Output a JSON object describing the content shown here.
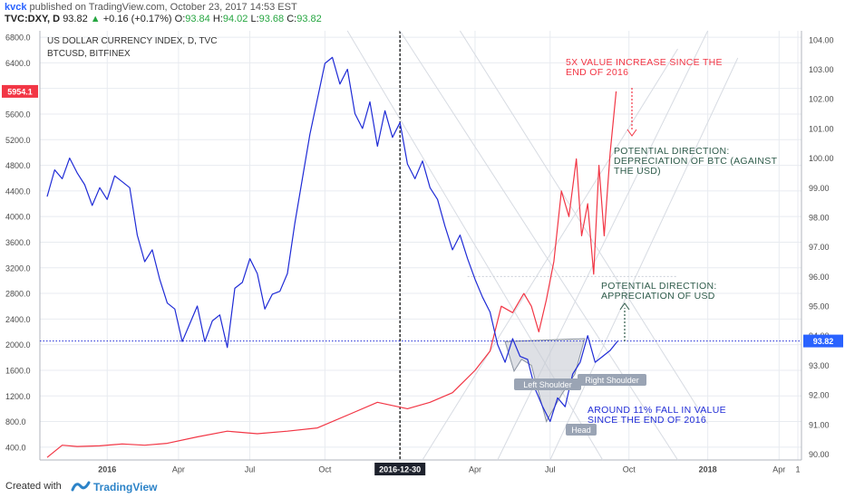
{
  "header": {
    "user": "kvck",
    "published_text": "published on TradingView.com, October 23, 2017 14:53 EST",
    "symbol": "TVC:DXY, D",
    "last": "93.82",
    "change": "+0.16 (+0.17%)",
    "open_label": "O:",
    "open": "93.84",
    "high_label": "H:",
    "high": "94.02",
    "low_label": "L:",
    "low": "93.68",
    "close_label": "C:",
    "close": "93.82"
  },
  "footer": {
    "created_with": "Created with",
    "brand": "TradingView"
  },
  "chart_data": {
    "type": "line",
    "title": "US DOLLAR CURRENCY INDEX, D, TVC",
    "subtitle": "BTCUSD, BITFINEX",
    "x_ticks": [
      "2016",
      "Apr",
      "Jul",
      "Oct",
      "2016-12-30",
      "Apr",
      "Jul",
      "Oct",
      "2018",
      "Apr",
      "1"
    ],
    "left_axis": {
      "ticks": [
        "6800.0",
        "6400.0",
        "6000.0",
        "5600.0",
        "5200.0",
        "4800.0",
        "4400.0",
        "4000.0",
        "3600.0",
        "3200.0",
        "2800.0",
        "2400.0",
        "2000.0",
        "1600.0",
        "1200.0",
        "800.0",
        "400.0"
      ],
      "range": [
        200,
        6900
      ]
    },
    "right_axis": {
      "ticks": [
        "104.00",
        "103.00",
        "102.00",
        "101.00",
        "100.00",
        "99.00",
        "98.00",
        "97.00",
        "96.00",
        "95.00",
        "94.00",
        "93.00",
        "92.00",
        "91.00",
        "90.00"
      ],
      "range": [
        89.8,
        104.3
      ]
    },
    "left_marker": {
      "value": "5954.1",
      "color": "#f23645"
    },
    "right_marker": {
      "value": "93.82",
      "color": "#2962ff"
    },
    "cursor_date": "2016-12-30",
    "series": [
      {
        "name": "BTCUSD, BITFINEX",
        "axis": "left",
        "color": "#f23645",
        "x": [
          0,
          2,
          4,
          7,
          10,
          13,
          16,
          20,
          24,
          28,
          32,
          36,
          40,
          44,
          48,
          51,
          54,
          57,
          59,
          60.5,
          62,
          63.5,
          64.5,
          65.5,
          66.5,
          67.5,
          68.5,
          69.5,
          70.5,
          71.2,
          72,
          72.8,
          73.5,
          74.2,
          75,
          75.8
        ],
        "values": [
          240,
          430,
          410,
          420,
          450,
          430,
          460,
          560,
          650,
          610,
          650,
          700,
          900,
          1100,
          1000,
          1100,
          1250,
          1600,
          1900,
          2600,
          2500,
          2800,
          2600,
          2200,
          2700,
          3300,
          4400,
          4000,
          4900,
          3700,
          4200,
          3100,
          4800,
          3700,
          5000,
          5954
        ]
      },
      {
        "name": "US DOLLAR CURRENCY INDEX, D, TVC",
        "axis": "right",
        "color": "#1f2bd6",
        "x": [
          0,
          1,
          2,
          3,
          4,
          5,
          6,
          7,
          8,
          9,
          10,
          11,
          12,
          13,
          14,
          15,
          16,
          17,
          18,
          19,
          20,
          21,
          22,
          23,
          24,
          25,
          26,
          27,
          28,
          29,
          30,
          31,
          32,
          33,
          34,
          35,
          36,
          37,
          38,
          39,
          40,
          41,
          42,
          43,
          44,
          45,
          46,
          47,
          48,
          49,
          50,
          51,
          52,
          53,
          54,
          55,
          56,
          57,
          58,
          59,
          60,
          61,
          62,
          63,
          64,
          65,
          66,
          67,
          68,
          69,
          70,
          71,
          72,
          73,
          74,
          75,
          76
        ],
        "values": [
          98.7,
          99.6,
          99.3,
          100.0,
          99.5,
          99.1,
          98.4,
          99.0,
          98.6,
          99.4,
          99.2,
          99.0,
          97.4,
          96.5,
          96.9,
          95.9,
          95.1,
          94.9,
          93.8,
          94.4,
          95.0,
          93.8,
          94.5,
          94.7,
          93.6,
          95.6,
          95.8,
          96.6,
          96.1,
          94.9,
          95.4,
          95.5,
          96.1,
          97.8,
          99.3,
          100.8,
          102.0,
          103.2,
          103.4,
          102.5,
          103.0,
          101.5,
          101.0,
          101.9,
          100.4,
          101.6,
          100.7,
          101.2,
          99.8,
          99.3,
          99.9,
          99.0,
          98.6,
          97.7,
          96.9,
          97.4,
          96.6,
          95.9,
          95.3,
          94.8,
          93.7,
          93.1,
          93.9,
          93.3,
          93.2,
          92.2,
          91.6,
          91.1,
          91.9,
          91.6,
          92.7,
          93.1,
          94.0,
          93.1,
          93.3,
          93.5,
          93.82
        ]
      }
    ],
    "annotations": [
      {
        "id": "btc-increase",
        "text": [
          "5X VALUE INCREASE SINCE THE",
          "END OF 2016"
        ],
        "color": "#f23645"
      },
      {
        "id": "btc-direction",
        "text": [
          "POTENTIAL DIRECTION:",
          "DEPRECIATION OF BTC (AGAINST",
          "THE USD)"
        ],
        "color": "#2e5b4a"
      },
      {
        "id": "usd-direction",
        "text": [
          "POTENTIAL DIRECTION:",
          "APPRECIATION OF USD"
        ],
        "color": "#2e5b4a"
      },
      {
        "id": "usd-fall",
        "text": [
          "AROUND 11% FALL IN VALUE",
          "SINCE THE END OF 2016"
        ],
        "color": "#1f2bd6"
      }
    ],
    "pattern_labels": {
      "left_shoulder": "Left Shoulder",
      "right_shoulder": "Right Shoulder",
      "head": "Head"
    },
    "colors": {
      "grid": "#e8ebf0",
      "axis_text": "#4a4a4a",
      "marker_bg": "#9aa4b4"
    }
  }
}
